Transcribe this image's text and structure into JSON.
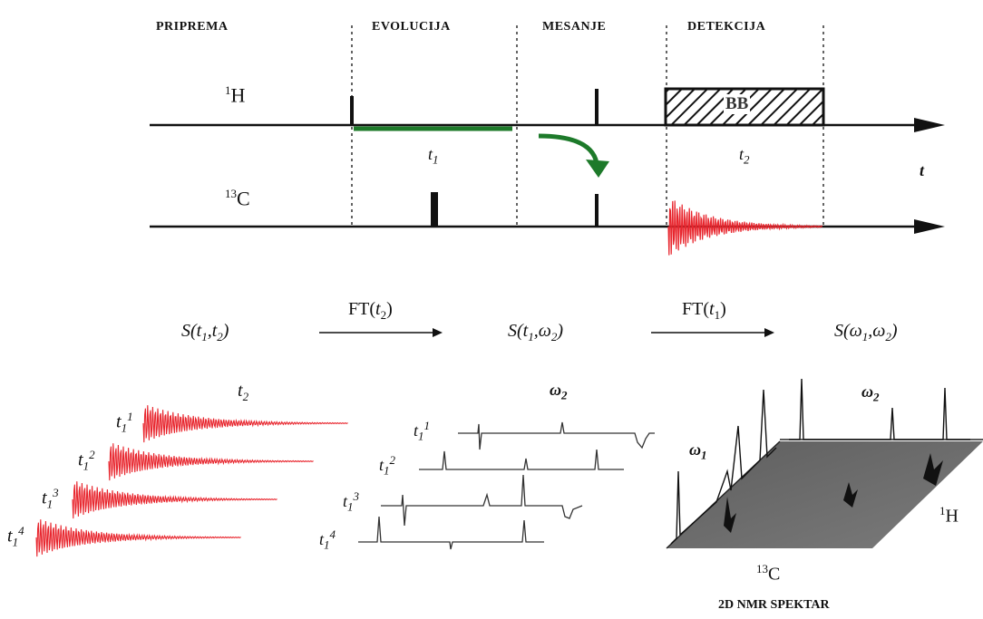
{
  "phases": {
    "preparation": "PRIPREMA",
    "evolution": "EVOLUCIJA",
    "mixing": "MESANJE",
    "detection": "DETEKCIJA"
  },
  "channels": {
    "h_mass": "1",
    "h_symbol": "H",
    "c_mass": "13",
    "c_symbol": "C"
  },
  "block_label": "BB",
  "time_labels": {
    "t": "t",
    "t1_base": "t",
    "t1_sub": "1",
    "t2_base": "t",
    "t2_sub": "2"
  },
  "transforms": {
    "ft1_prefix": "FT(",
    "ft1_var": "t",
    "ft1_sub": "2",
    "ft1_suffix": ")",
    "ft2_prefix": "FT(",
    "ft2_var": "t",
    "ft2_sub": "1",
    "ft2_suffix": ")"
  },
  "signals": {
    "s1": {
      "pre": "S(",
      "a": "t",
      "a_sub": "1",
      "sep": ",",
      "b": "t",
      "b_sub": "2",
      "post": ")"
    },
    "s2": {
      "pre": "S(",
      "a": "t",
      "a_sub": "1",
      "sep": ",",
      "b": "ω",
      "b_sub": "2",
      "post": ")"
    },
    "s3": {
      "pre": "S(",
      "a": "ω",
      "a_sub": "1",
      "sep": ",",
      "b": "ω",
      "b_sub": "2",
      "post": ")"
    }
  },
  "panel_axes": {
    "fid_axis_base": "t",
    "fid_axis_sub": "2",
    "spec_axis_base": "ω",
    "spec_axis_sub": "2",
    "map_w1_base": "ω",
    "map_w1_sub": "1",
    "map_w2_base": "ω",
    "map_w2_sub": "2",
    "map_h_mass": "1",
    "map_h_symbol": "H",
    "map_c_mass": "13",
    "map_c_symbol": "C"
  },
  "increments": [
    {
      "base": "t",
      "sub": "1",
      "sup": "1"
    },
    {
      "base": "t",
      "sub": "1",
      "sup": "2"
    },
    {
      "base": "t",
      "sub": "1",
      "sup": "3"
    },
    {
      "base": "t",
      "sub": "1",
      "sup": "4"
    }
  ],
  "footer": "2D NMR SPEKTAR",
  "colors": {
    "fid": "#e8262e",
    "transfer_arrow": "#1d7a2a",
    "ink": "#111111",
    "plane": "#6e6e6e"
  }
}
